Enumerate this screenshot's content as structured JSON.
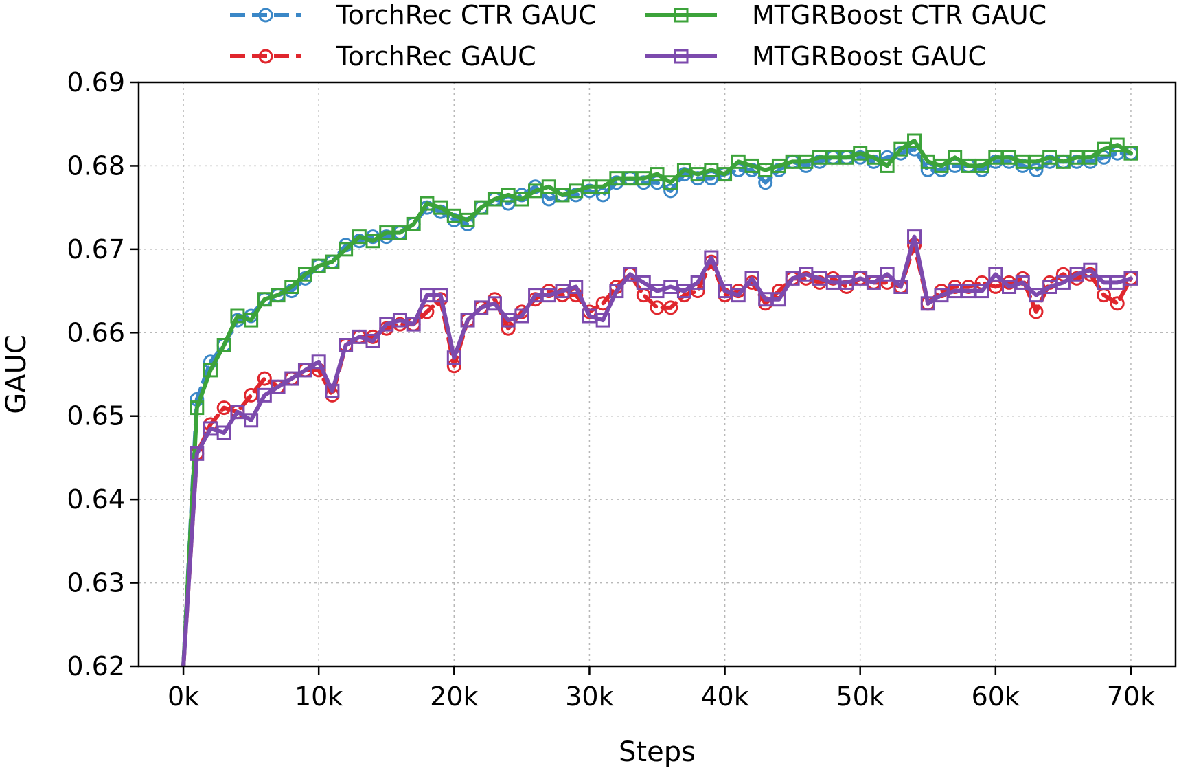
{
  "chart_data": {
    "type": "line",
    "xlabel": "Steps",
    "ylabel": "GAUC",
    "xlim": [
      -3300,
      73300
    ],
    "ylim": [
      0.62,
      0.69
    ],
    "xticks": [
      0,
      10000,
      20000,
      30000,
      40000,
      50000,
      60000,
      70000
    ],
    "xtick_labels": [
      "0k",
      "10k",
      "20k",
      "30k",
      "40k",
      "50k",
      "60k",
      "70k"
    ],
    "yticks": [
      0.62,
      0.63,
      0.64,
      0.65,
      0.66,
      0.67,
      0.68,
      0.69
    ],
    "ytick_labels": [
      "0.62",
      "0.63",
      "0.64",
      "0.65",
      "0.66",
      "0.67",
      "0.68",
      "0.69"
    ],
    "grid": true,
    "legend_position": "top-center",
    "series": [
      {
        "name": "TorchRec CTR GAUC",
        "color": "#3a87c7",
        "linestyle": "dashed",
        "marker": "circle",
        "x": [
          0,
          1000,
          2000,
          3000,
          4000,
          5000,
          6000,
          7000,
          8000,
          9000,
          10000,
          11000,
          12000,
          13000,
          14000,
          15000,
          16000,
          17000,
          18000,
          19000,
          20000,
          21000,
          22000,
          23000,
          24000,
          25000,
          26000,
          27000,
          28000,
          29000,
          30000,
          31000,
          32000,
          33000,
          34000,
          35000,
          36000,
          37000,
          38000,
          39000,
          40000,
          41000,
          42000,
          43000,
          44000,
          45000,
          46000,
          47000,
          48000,
          49000,
          50000,
          51000,
          52000,
          53000,
          54000,
          55000,
          56000,
          57000,
          58000,
          59000,
          60000,
          61000,
          62000,
          63000,
          64000,
          65000,
          66000,
          67000,
          68000,
          69000,
          70000
        ],
        "values": [
          0.62,
          0.652,
          0.6565,
          0.6585,
          0.6615,
          0.662,
          0.664,
          0.6645,
          0.665,
          0.6665,
          0.668,
          0.6685,
          0.6705,
          0.671,
          0.6715,
          0.6715,
          0.672,
          0.673,
          0.675,
          0.6745,
          0.6735,
          0.673,
          0.675,
          0.676,
          0.6755,
          0.6765,
          0.6775,
          0.676,
          0.6765,
          0.6765,
          0.677,
          0.6765,
          0.678,
          0.6785,
          0.678,
          0.678,
          0.677,
          0.679,
          0.6785,
          0.6785,
          0.679,
          0.6795,
          0.6795,
          0.678,
          0.6795,
          0.6805,
          0.68,
          0.6805,
          0.681,
          0.681,
          0.681,
          0.6805,
          0.681,
          0.6815,
          0.682,
          0.6795,
          0.6795,
          0.68,
          0.68,
          0.6795,
          0.6805,
          0.6805,
          0.68,
          0.6795,
          0.6805,
          0.6805,
          0.6805,
          0.6805,
          0.681,
          0.6815,
          0.6815
        ]
      },
      {
        "name": "TorchRec GAUC",
        "color": "#e0262d",
        "linestyle": "dashed",
        "marker": "circle",
        "x": [
          0,
          1000,
          2000,
          3000,
          4000,
          5000,
          6000,
          7000,
          8000,
          9000,
          10000,
          11000,
          12000,
          13000,
          14000,
          15000,
          16000,
          17000,
          18000,
          19000,
          20000,
          21000,
          22000,
          23000,
          24000,
          25000,
          26000,
          27000,
          28000,
          29000,
          30000,
          31000,
          32000,
          33000,
          34000,
          35000,
          36000,
          37000,
          38000,
          39000,
          40000,
          41000,
          42000,
          43000,
          44000,
          45000,
          46000,
          47000,
          48000,
          49000,
          50000,
          51000,
          52000,
          53000,
          54000,
          55000,
          56000,
          57000,
          58000,
          59000,
          60000,
          61000,
          62000,
          63000,
          64000,
          65000,
          66000,
          67000,
          68000,
          69000,
          70000
        ],
        "values": [
          0.62,
          0.6455,
          0.649,
          0.651,
          0.6505,
          0.6525,
          0.6545,
          0.6535,
          0.6545,
          0.6555,
          0.6555,
          0.6525,
          0.6585,
          0.6595,
          0.6595,
          0.6605,
          0.661,
          0.661,
          0.6625,
          0.664,
          0.656,
          0.6615,
          0.663,
          0.664,
          0.6605,
          0.6625,
          0.664,
          0.665,
          0.6645,
          0.6645,
          0.6625,
          0.6635,
          0.6655,
          0.667,
          0.6645,
          0.663,
          0.663,
          0.6645,
          0.665,
          0.6685,
          0.6645,
          0.665,
          0.666,
          0.6635,
          0.665,
          0.6665,
          0.6665,
          0.666,
          0.6665,
          0.6655,
          0.6665,
          0.666,
          0.666,
          0.6655,
          0.6705,
          0.6635,
          0.665,
          0.6655,
          0.6655,
          0.666,
          0.6655,
          0.666,
          0.6665,
          0.6625,
          0.666,
          0.667,
          0.6665,
          0.667,
          0.6645,
          0.6635,
          0.6665
        ]
      },
      {
        "name": "MTGRBoost CTR GAUC",
        "color": "#3ca33a",
        "linestyle": "solid",
        "marker": "square",
        "x": [
          0,
          1000,
          2000,
          3000,
          4000,
          5000,
          6000,
          7000,
          8000,
          9000,
          10000,
          11000,
          12000,
          13000,
          14000,
          15000,
          16000,
          17000,
          18000,
          19000,
          20000,
          21000,
          22000,
          23000,
          24000,
          25000,
          26000,
          27000,
          28000,
          29000,
          30000,
          31000,
          32000,
          33000,
          34000,
          35000,
          36000,
          37000,
          38000,
          39000,
          40000,
          41000,
          42000,
          43000,
          44000,
          45000,
          46000,
          47000,
          48000,
          49000,
          50000,
          51000,
          52000,
          53000,
          54000,
          55000,
          56000,
          57000,
          58000,
          59000,
          60000,
          61000,
          62000,
          63000,
          64000,
          65000,
          66000,
          67000,
          68000,
          69000,
          70000
        ],
        "values": [
          0.62,
          0.651,
          0.6555,
          0.6585,
          0.662,
          0.6615,
          0.664,
          0.6645,
          0.6655,
          0.667,
          0.668,
          0.6685,
          0.67,
          0.6715,
          0.671,
          0.672,
          0.672,
          0.673,
          0.6755,
          0.675,
          0.674,
          0.6735,
          0.675,
          0.676,
          0.6765,
          0.676,
          0.677,
          0.6775,
          0.6765,
          0.677,
          0.6775,
          0.6775,
          0.6785,
          0.6785,
          0.6785,
          0.679,
          0.678,
          0.6795,
          0.679,
          0.6795,
          0.679,
          0.6805,
          0.68,
          0.6795,
          0.68,
          0.6805,
          0.6805,
          0.681,
          0.681,
          0.681,
          0.6815,
          0.681,
          0.68,
          0.682,
          0.683,
          0.6805,
          0.68,
          0.681,
          0.68,
          0.68,
          0.681,
          0.681,
          0.6805,
          0.6805,
          0.681,
          0.6805,
          0.681,
          0.681,
          0.682,
          0.6825,
          0.6815
        ]
      },
      {
        "name": "MTGRBoost GAUC",
        "color": "#7c4aad",
        "linestyle": "solid",
        "marker": "square",
        "x": [
          0,
          1000,
          2000,
          3000,
          4000,
          5000,
          6000,
          7000,
          8000,
          9000,
          10000,
          11000,
          12000,
          13000,
          14000,
          15000,
          16000,
          17000,
          18000,
          19000,
          20000,
          21000,
          22000,
          23000,
          24000,
          25000,
          26000,
          27000,
          28000,
          29000,
          30000,
          31000,
          32000,
          33000,
          34000,
          35000,
          36000,
          37000,
          38000,
          39000,
          40000,
          41000,
          42000,
          43000,
          44000,
          45000,
          46000,
          47000,
          48000,
          49000,
          50000,
          51000,
          52000,
          53000,
          54000,
          55000,
          56000,
          57000,
          58000,
          59000,
          60000,
          61000,
          62000,
          63000,
          64000,
          65000,
          66000,
          67000,
          68000,
          69000,
          70000
        ],
        "values": [
          0.62,
          0.6455,
          0.6485,
          0.648,
          0.6505,
          0.6495,
          0.6525,
          0.6535,
          0.6545,
          0.6555,
          0.6565,
          0.653,
          0.6585,
          0.6595,
          0.659,
          0.661,
          0.6615,
          0.661,
          0.6645,
          0.6645,
          0.657,
          0.6615,
          0.663,
          0.6635,
          0.6615,
          0.662,
          0.6645,
          0.6645,
          0.665,
          0.6655,
          0.662,
          0.6615,
          0.665,
          0.667,
          0.666,
          0.665,
          0.6655,
          0.665,
          0.666,
          0.669,
          0.665,
          0.6645,
          0.6665,
          0.664,
          0.664,
          0.6665,
          0.667,
          0.6665,
          0.666,
          0.666,
          0.6665,
          0.666,
          0.667,
          0.6655,
          0.6715,
          0.6635,
          0.6645,
          0.665,
          0.665,
          0.665,
          0.667,
          0.6655,
          0.666,
          0.6645,
          0.6655,
          0.666,
          0.667,
          0.6675,
          0.666,
          0.666,
          0.6665
        ]
      }
    ]
  }
}
